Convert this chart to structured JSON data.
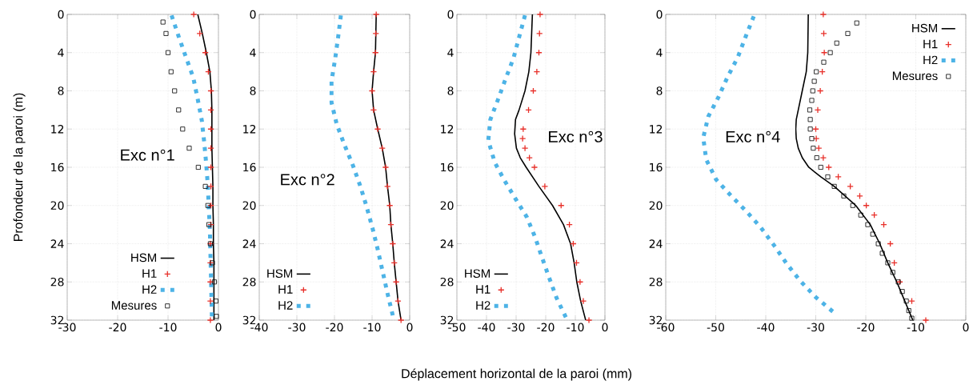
{
  "chart_data": [
    {
      "type": "line",
      "ylabel": "Profondeur de la paroi (m)",
      "annotations": [
        "Exc n°1"
      ],
      "xlim": [
        -30,
        0
      ],
      "xticks": [
        -30,
        -20,
        -10,
        0
      ],
      "ylim": [
        32,
        0
      ],
      "yticks": [
        0,
        4,
        8,
        12,
        16,
        20,
        24,
        28,
        32
      ],
      "grid": true,
      "legend": "bottom",
      "series": [
        {
          "name": "HSM",
          "color": "#000000",
          "line_style": "solid",
          "x": [
            -4.1,
            -3.2,
            -2.4,
            -1.7,
            -1.4,
            -1.3,
            -1.3,
            -1.3,
            -1.2,
            -1.1,
            -1.1,
            -1.0,
            -1.0,
            -0.9,
            -0.9,
            -0.9,
            -0.9
          ],
          "values": [
            0,
            2,
            4,
            6,
            8,
            10,
            12,
            14,
            16,
            18,
            20,
            22,
            24,
            26,
            28,
            30,
            32
          ]
        },
        {
          "name": "H1",
          "type": "scatter",
          "color": "#e8302a",
          "marker": "cross",
          "x": [
            -4.9,
            -3.7,
            -2.6,
            -2.0,
            -1.5,
            -1.5,
            -1.5,
            -1.5,
            -1.5,
            -1.5,
            -1.5,
            -1.5,
            -1.6,
            -1.6,
            -1.6,
            -1.6,
            -1.6
          ],
          "values": [
            0,
            2,
            4,
            6,
            8,
            10,
            12,
            14,
            16,
            18,
            20,
            22,
            24,
            26,
            28,
            30,
            32
          ]
        },
        {
          "name": "H2",
          "color": "#4db3e6",
          "line_style": "dashed",
          "x": [
            -9.3,
            -7.9,
            -6.5,
            -5.0,
            -4.1,
            -3.3,
            -2.8,
            -2.4,
            -2.1,
            -1.9,
            -1.7,
            -1.6,
            -1.5,
            -1.4,
            -1.3
          ],
          "values": [
            0.1,
            2.3,
            4.4,
            6.6,
            8.9,
            11.1,
            13.5,
            15.8,
            18.0,
            20.4,
            22.5,
            24.8,
            27.0,
            29.3,
            31.6
          ]
        },
        {
          "name": "Mesures",
          "type": "scatter",
          "color": "#000000",
          "marker": "square",
          "x": [
            -11.0,
            -10.4,
            -10.0,
            -9.4,
            -8.7,
            -7.9,
            -7.1,
            -5.8,
            -4.0,
            -2.6,
            -2.1,
            -1.9,
            -1.6,
            -1.2,
            -0.8,
            -0.5,
            -0.4
          ],
          "values": [
            0.8,
            2,
            4,
            6,
            8,
            10,
            12,
            14,
            16,
            18,
            20,
            22,
            24,
            26,
            28,
            30,
            31.6
          ]
        }
      ]
    },
    {
      "type": "line",
      "annotations": [
        "Exc n°2"
      ],
      "xlim": [
        -40,
        0
      ],
      "xticks": [
        -40,
        -30,
        -20,
        -10,
        0
      ],
      "ylim": [
        32,
        0
      ],
      "yticks": [
        0,
        4,
        8,
        12,
        16,
        20,
        24,
        28,
        32
      ],
      "grid": true,
      "legend": "bottom left",
      "series": [
        {
          "name": "HSM",
          "color": "#000000",
          "line_style": "solid",
          "x": [
            -8.9,
            -9.0,
            -9.1,
            -9.6,
            -10.0,
            -9.6,
            -8.5,
            -7.3,
            -6.4,
            -5.9,
            -5.3,
            -5.0,
            -4.5,
            -4.1,
            -3.6,
            -3.1,
            -2.3
          ],
          "values": [
            0,
            2,
            4,
            6,
            8,
            10,
            12,
            14,
            16,
            18,
            20,
            22,
            24,
            26,
            28,
            30,
            32
          ]
        },
        {
          "name": "H1",
          "type": "scatter",
          "color": "#e8302a",
          "marker": "cross",
          "x": [
            -8.9,
            -9.0,
            -9.1,
            -9.6,
            -10.0,
            -9.6,
            -8.5,
            -7.3,
            -6.4,
            -5.9,
            -5.3,
            -5.0,
            -4.5,
            -4.1,
            -3.6,
            -3.1,
            -2.3
          ],
          "values": [
            0,
            2,
            4,
            6,
            8,
            10,
            12,
            14,
            16,
            18,
            20,
            22,
            24,
            26,
            28,
            30,
            32
          ]
        },
        {
          "name": "H2",
          "color": "#4db3e6",
          "line_style": "dashed",
          "x": [
            -18.3,
            -19.0,
            -19.8,
            -20.8,
            -20.8,
            -19.4,
            -17.3,
            -15.1,
            -13.1,
            -11.4,
            -9.8,
            -8.5,
            -7.2,
            -5.9,
            -4.5
          ],
          "values": [
            0.1,
            2.3,
            4.6,
            7.0,
            9.2,
            11.5,
            13.7,
            15.8,
            18.0,
            20.2,
            22.5,
            24.6,
            26.9,
            29.2,
            31.5
          ]
        }
      ]
    },
    {
      "type": "line",
      "xlabel": "Déplacement horizontal de la paroi (mm)",
      "annotations": [
        "Exc n°3"
      ],
      "xlim": [
        -50,
        0
      ],
      "xticks": [
        -50,
        -40,
        -30,
        -20,
        -10,
        0
      ],
      "ylim": [
        32,
        0
      ],
      "yticks": [
        0,
        4,
        8,
        12,
        16,
        20,
        24,
        28,
        32
      ],
      "grid": true,
      "legend": "bottom left",
      "series": [
        {
          "name": "HSM",
          "color": "#000000",
          "line_style": "solid",
          "x": [
            -24.5,
            -25.0,
            -25.7,
            -27.0,
            -29.0,
            -30.2,
            -30.5,
            -29.9,
            -28.6,
            -26.6,
            -22.3,
            -17.7,
            -14.0,
            -11.6,
            -10.4,
            -9.5,
            -8.2,
            -6.5
          ],
          "values": [
            0,
            4,
            6,
            8,
            10,
            11,
            12.5,
            14,
            15,
            16,
            18,
            20,
            22,
            24,
            26,
            28,
            30,
            32
          ]
        },
        {
          "name": "H1",
          "type": "scatter",
          "color": "#e8302a",
          "marker": "cross",
          "x": [
            -21.9,
            -22.1,
            -22.3,
            -23.0,
            -24.2,
            -25.8,
            -27.6,
            -27.8,
            -27.0,
            -25.5,
            -23.8,
            -20.3,
            -14.8,
            -12.0,
            -10.7,
            -9.6,
            -8.4,
            -7.3,
            -5.4
          ],
          "values": [
            0,
            2,
            4,
            6,
            8,
            10,
            12,
            13,
            14,
            15,
            16,
            18,
            20,
            22,
            24,
            26,
            28,
            30,
            32
          ]
        },
        {
          "name": "H2",
          "color": "#4db3e6",
          "line_style": "dashed",
          "x": [
            -27.0,
            -29.0,
            -30.9,
            -33.5,
            -36.1,
            -38.7,
            -39.4,
            -37.2,
            -33.9,
            -30.2,
            -26.4,
            -23.6,
            -21.3,
            -18.9,
            -16.3,
            -13.2
          ],
          "values": [
            0.1,
            2.4,
            4.6,
            6.7,
            8.9,
            11.0,
            13.2,
            15.5,
            17.4,
            19.3,
            21.2,
            23.3,
            25.4,
            27.5,
            29.7,
            31.7
          ]
        }
      ]
    },
    {
      "type": "line",
      "annotations": [
        "Exc n°4"
      ],
      "xlim": [
        -60,
        0
      ],
      "xticks": [
        -60,
        -50,
        -40,
        -30,
        -20,
        -10,
        0
      ],
      "ylim": [
        32,
        0
      ],
      "yticks": [
        0,
        4,
        8,
        12,
        16,
        20,
        24,
        28,
        32
      ],
      "grid": true,
      "legend": "top right",
      "series": [
        {
          "name": "HSM",
          "color": "#000000",
          "line_style": "solid",
          "x": [
            -31.5,
            -31.6,
            -31.9,
            -32.7,
            -33.5,
            -33.9,
            -34.0,
            -33.9,
            -33.5,
            -32.7,
            -31.4,
            -29.0,
            -26.3,
            -22.0,
            -19.1,
            -17.2,
            -15.6,
            -13.8,
            -12.2,
            -10.6
          ],
          "values": [
            0,
            4,
            6,
            8,
            10,
            11,
            12,
            13,
            14,
            15,
            16,
            17,
            18,
            20,
            22,
            24,
            26,
            28,
            30,
            32
          ]
        },
        {
          "name": "H1",
          "type": "scatter",
          "color": "#e8302a",
          "marker": "cross",
          "x": [
            -28.5,
            -28.4,
            -28.3,
            -28.7,
            -29.1,
            -29.6,
            -30.0,
            -29.9,
            -29.4,
            -28.5,
            -27.4,
            -25.5,
            -23.1,
            -21.2,
            -19.9,
            -18.3,
            -16.4,
            -15.1,
            -14.3,
            -13.2,
            -10.8,
            -8.0
          ],
          "values": [
            0,
            2,
            4,
            6,
            8,
            10,
            12,
            13,
            14,
            15,
            16,
            17,
            18,
            19,
            20,
            21,
            22,
            24,
            26,
            28,
            30,
            32
          ]
        },
        {
          "name": "H2",
          "color": "#4db3e6",
          "line_style": "dashed",
          "x": [
            -42.4,
            -44.0,
            -45.6,
            -47.6,
            -49.5,
            -51.5,
            -52.5,
            -51.9,
            -49.9,
            -46.9,
            -43.9,
            -41.0,
            -38.3,
            -35.8,
            -33.1,
            -30.0,
            -26.6
          ],
          "values": [
            0.2,
            2.3,
            4.5,
            6.5,
            8.7,
            10.7,
            12.9,
            15.2,
            17.3,
            19.0,
            20.6,
            22.3,
            24.2,
            26.1,
            27.9,
            29.6,
            31.1
          ]
        },
        {
          "name": "Mesures",
          "type": "scatter",
          "color": "#000000",
          "marker": "square",
          "x": [
            -21.8,
            -23.6,
            -25.8,
            -27.1,
            -28.4,
            -29.9,
            -30.3,
            -30.6,
            -30.8,
            -31.2,
            -31.1,
            -31.1,
            -30.8,
            -30.5,
            -29.8,
            -29.0,
            -27.6,
            -26.3,
            -24.4,
            -22.6,
            -21.0,
            -19.6,
            -18.6,
            -17.5,
            -16.7,
            -15.6,
            -14.6,
            -13.5,
            -12.7,
            -11.9,
            -11.4,
            -10.8
          ],
          "values": [
            0.9,
            2,
            3,
            4,
            5,
            6,
            7,
            8,
            9,
            10,
            11,
            12,
            13,
            14,
            15,
            16,
            17,
            18,
            19,
            20,
            21,
            22,
            23,
            24,
            25,
            26,
            27,
            28,
            29,
            30,
            31,
            31.8
          ]
        }
      ]
    }
  ]
}
